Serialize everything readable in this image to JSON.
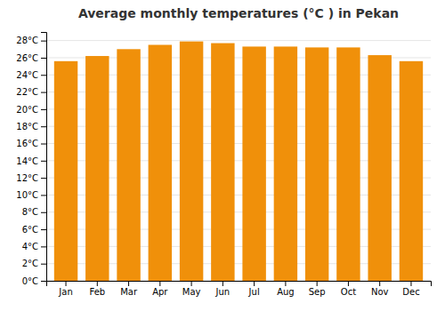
{
  "chart_data": {
    "type": "bar",
    "title": "Average monthly temperatures (°C ) in Pekan",
    "categories": [
      "Jan",
      "Feb",
      "Mar",
      "Apr",
      "May",
      "Jun",
      "Jul",
      "Aug",
      "Sep",
      "Oct",
      "Nov",
      "Dec"
    ],
    "values": [
      25.6,
      26.2,
      27.0,
      27.5,
      27.9,
      27.7,
      27.3,
      27.3,
      27.2,
      27.2,
      26.3,
      25.6
    ],
    "color": "#F0900A",
    "ylim": [
      0,
      29
    ],
    "yticks": [
      {
        "value": 0,
        "label": "0°C"
      },
      {
        "value": 2,
        "label": "2°C"
      },
      {
        "value": 4,
        "label": "4°C"
      },
      {
        "value": 6,
        "label": "6°C"
      },
      {
        "value": 8,
        "label": "8°C"
      },
      {
        "value": 10,
        "label": "10°C"
      },
      {
        "value": 12,
        "label": "12°C"
      },
      {
        "value": 14,
        "label": "14°C"
      },
      {
        "value": 16,
        "label": "16°C"
      },
      {
        "value": 18,
        "label": "18°C"
      },
      {
        "value": 20,
        "label": "20°C"
      },
      {
        "value": 22,
        "label": "22°C"
      },
      {
        "value": 24,
        "label": "24°C"
      },
      {
        "value": 26,
        "label": "26°C"
      },
      {
        "value": 28,
        "label": "28°C"
      }
    ],
    "grid": true
  }
}
